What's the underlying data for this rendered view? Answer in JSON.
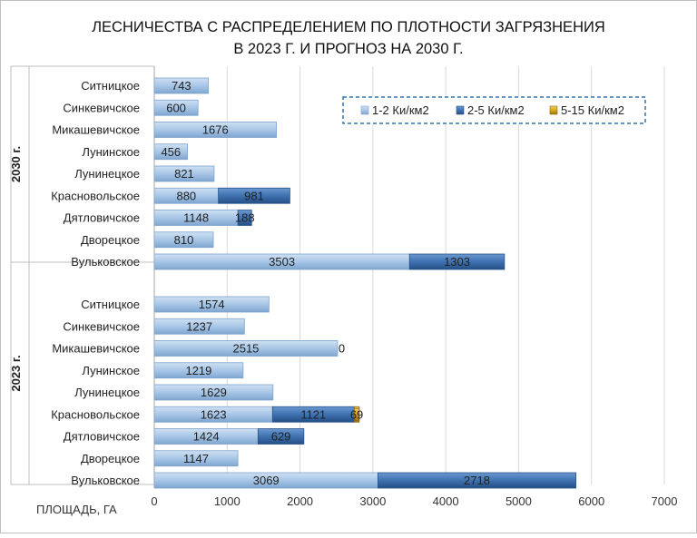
{
  "chart_data": {
    "type": "bar",
    "orientation": "horizontal",
    "stacked": true,
    "title": [
      "ЛЕСНИЧЕСТВА С РАСПРЕДЕЛЕНИЕМ ПО ПЛОТНОСТИ ЗАГРЯЗНЕНИЯ",
      "В 2023 Г. И ПРОГНОЗ НА 2030 Г."
    ],
    "xlabel": "ПЛОЩАДЬ, ГА",
    "xlim": [
      0,
      7000
    ],
    "xticks": [
      0,
      1000,
      2000,
      3000,
      4000,
      5000,
      6000,
      7000
    ],
    "grid": true,
    "legend_position": "top-right",
    "series": [
      {
        "name": "1-2 Ки/км2",
        "color": "#a8c6e6"
      },
      {
        "name": "2-5 Ки/км2",
        "color": "#3f72b0"
      },
      {
        "name": "5-15 Ки/км2",
        "color": "#d8a81c"
      }
    ],
    "groups": [
      {
        "label": "2030 г.",
        "categories": [
          "Ситницкое",
          "Синкевичское",
          "Микашевичское",
          "Лунинское",
          "Лунинецкое",
          "Красновольское",
          "Дятловичское",
          "Дворецкое",
          "Вульковское"
        ],
        "values": [
          [
            743,
            600,
            1676,
            456,
            821,
            880,
            1148,
            810,
            3503
          ],
          [
            null,
            null,
            null,
            null,
            null,
            981,
            188,
            null,
            1303
          ],
          [
            null,
            null,
            null,
            null,
            null,
            null,
            null,
            null,
            null
          ]
        ]
      },
      {
        "label": "2023 г.",
        "categories": [
          "Ситницкое",
          "Синкевичское",
          "Микашевичское",
          "Лунинское",
          "Лунинецкое",
          "Красновольское",
          "Дятловичское",
          "Дворецкое",
          "Вульковское"
        ],
        "values": [
          [
            1574,
            1237,
            2515,
            1219,
            1629,
            1623,
            1424,
            1147,
            3069
          ],
          [
            null,
            null,
            0,
            null,
            null,
            1121,
            629,
            null,
            2718
          ],
          [
            null,
            null,
            null,
            null,
            null,
            69,
            null,
            null,
            null
          ]
        ]
      }
    ]
  }
}
